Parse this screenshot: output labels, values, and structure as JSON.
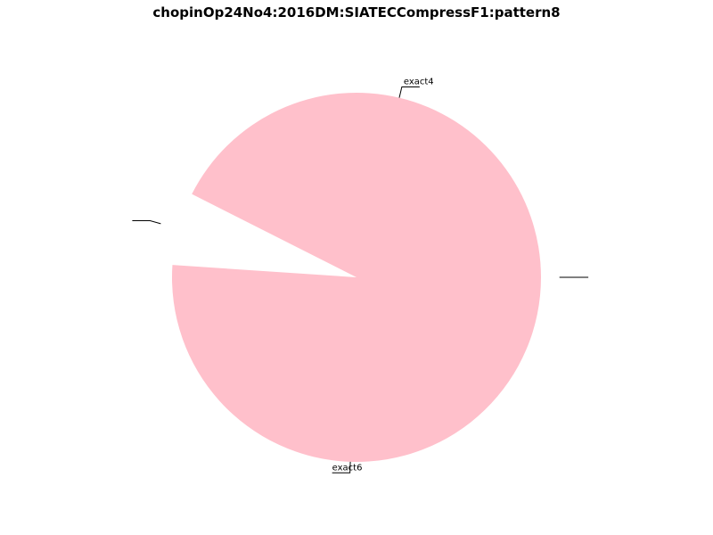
{
  "chart_data": {
    "type": "pie",
    "title": "chopinOp24No4:2016DM:SIATECCompressF1:pattern8",
    "slices": [
      {
        "label": "exact4",
        "value": 1,
        "color": "#ffc0cb",
        "exploded": false
      },
      {
        "label": "",
        "value": 0.15,
        "color": "#ffffff",
        "exploded": true
      },
      {
        "label": "exact6",
        "value": 1.2,
        "color": "#ffc0cb",
        "exploded": false
      },
      {
        "label": "",
        "value": 0,
        "color": "#ffffff",
        "exploded": true
      }
    ],
    "legend": "none"
  }
}
